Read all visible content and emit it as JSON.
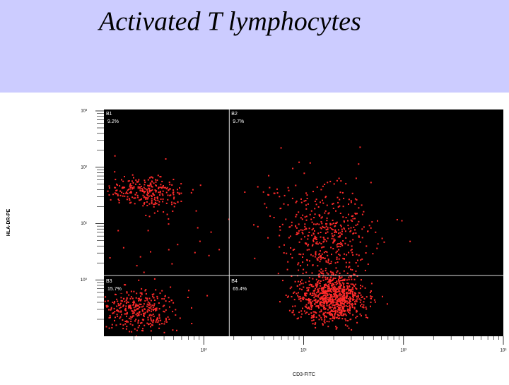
{
  "slide_title": "Activated T lymphocytes",
  "chart_data": {
    "type": "scatter",
    "xlabel": "CD3-FITC",
    "ylabel": "HLA-DR-PE",
    "xscale": "log",
    "yscale": "log",
    "xlim": [
      0.1,
      1000
    ],
    "ylim": [
      0.1,
      1000
    ],
    "xticks": [
      {
        "value": 1,
        "label": "10⁰"
      },
      {
        "value": 10,
        "label": "10¹"
      },
      {
        "value": 100,
        "label": "10²"
      },
      {
        "value": 1000,
        "label": "10³"
      }
    ],
    "yticks": [
      {
        "value": 1,
        "label": "10⁰"
      },
      {
        "value": 10,
        "label": "10¹"
      },
      {
        "value": 100,
        "label": "10²"
      },
      {
        "value": 1000,
        "label": "10³"
      }
    ],
    "gates": {
      "x": 1.8,
      "y": 1.2
    },
    "color": "#ff2a2a",
    "categories": [
      "B1",
      "B2",
      "B3",
      "B4"
    ],
    "values": [
      9.2,
      9.7,
      15.7,
      65.4
    ],
    "value_labels": [
      "9.2%",
      "9.7%",
      "15.7%",
      "65.4%"
    ]
  }
}
